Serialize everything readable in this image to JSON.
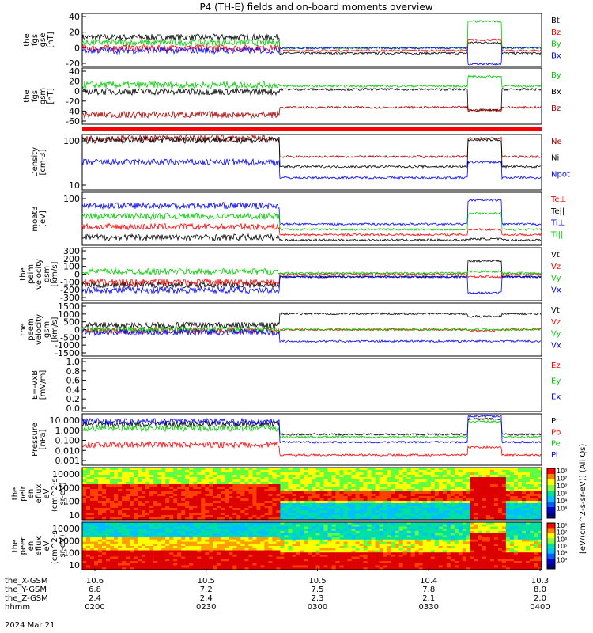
{
  "title": "P4 (TH-E) fields and on-board moments overview",
  "colors": {
    "black": "#000000",
    "red": "#ff0000",
    "green": "#00cc00",
    "blue": "#0000ff",
    "darkred": "#aa0000"
  },
  "chart_data": [
    {
      "type": "line",
      "panel": "fgs_gse",
      "ylabel": [
        "the",
        "fgs",
        "gse",
        "[nT]"
      ],
      "yticks": [
        "40",
        "20",
        "0",
        "-20"
      ],
      "ylim": [
        -30,
        55
      ],
      "series": [
        {
          "name": "Bt",
          "color": "#000000"
        },
        {
          "name": "Bz",
          "color": "#ff0000"
        },
        {
          "name": "By",
          "color": "#00cc00"
        },
        {
          "name": "Bx",
          "color": "#0000ff"
        }
      ]
    },
    {
      "type": "line",
      "panel": "fgs_gsm",
      "ylabel": [
        "the",
        "fgs",
        "gsm",
        "[nT]"
      ],
      "yticks": [
        "40",
        "20",
        "0",
        "-20",
        "-40",
        "-60"
      ],
      "ylim": [
        -75,
        45
      ],
      "series": [
        {
          "name": "By",
          "color": "#00cc00"
        },
        {
          "name": "Bx",
          "color": "#000000"
        },
        {
          "name": "Bz",
          "color": "#aa0000"
        }
      ]
    },
    {
      "type": "line",
      "panel": "density",
      "ylabel": [
        "Density",
        "[cm-3]"
      ],
      "yticks": [
        "100",
        "10"
      ],
      "scale": "log",
      "series": [
        {
          "name": "Ne",
          "color": "#aa0000"
        },
        {
          "name": "Ni",
          "color": "#000000"
        },
        {
          "name": "Npot",
          "color": "#0000ff"
        }
      ]
    },
    {
      "type": "line",
      "panel": "temperature",
      "ylabel": [
        "moat3",
        "[eV]"
      ],
      "yticks": [
        "100"
      ],
      "scale": "log",
      "series": [
        {
          "name": "Te⊥",
          "color": "#ff0000"
        },
        {
          "name": "Te||",
          "color": "#000000"
        },
        {
          "name": "Ti⊥",
          "color": "#0000ff"
        },
        {
          "name": "Ti||",
          "color": "#00cc00"
        }
      ]
    },
    {
      "type": "line",
      "panel": "peim_velocity",
      "ylabel": [
        "the",
        "peim",
        "velocity",
        "gsm",
        "[km/s]"
      ],
      "yticks": [
        "300",
        "200",
        "100",
        "0",
        "-100",
        "-200",
        "-300"
      ],
      "ylim": [
        -300,
        300
      ],
      "series": [
        {
          "name": "Vt",
          "color": "#000000"
        },
        {
          "name": "Vz",
          "color": "#ff0000"
        },
        {
          "name": "Vy",
          "color": "#00cc00"
        },
        {
          "name": "Vx",
          "color": "#0000ff"
        }
      ]
    },
    {
      "type": "line",
      "panel": "peem_velocity",
      "ylabel": [
        "the",
        "peem",
        "velocity",
        "gsm",
        "[km/s]"
      ],
      "yticks": [
        "1500",
        "1000",
        "500",
        "0",
        "-500",
        "-1000",
        "-1500"
      ],
      "ylim": [
        -1500,
        1500
      ],
      "series": [
        {
          "name": "Vt",
          "color": "#000000"
        },
        {
          "name": "Vz",
          "color": "#ff0000"
        },
        {
          "name": "Vy",
          "color": "#00cc00"
        },
        {
          "name": "Vx",
          "color": "#0000ff"
        }
      ]
    },
    {
      "type": "line",
      "panel": "efield",
      "ylabel": [
        "E=-VxB",
        "[mV/m]"
      ],
      "yticks": [
        "1.0",
        "0.8",
        "0.6",
        "0.4",
        "0.2",
        "0.0"
      ],
      "ylim": [
        0,
        1
      ],
      "series": [
        {
          "name": "Ez",
          "color": "#ff0000"
        },
        {
          "name": "Ey",
          "color": "#00cc00"
        },
        {
          "name": "Ex",
          "color": "#0000ff"
        }
      ]
    },
    {
      "type": "line",
      "panel": "pressure",
      "ylabel": [
        "Pressure",
        "[nPa]"
      ],
      "yticks": [
        "10.000",
        "1.000",
        "0.100",
        "0.010",
        "0.001"
      ],
      "scale": "log",
      "series": [
        {
          "name": "Pt",
          "color": "#000000"
        },
        {
          "name": "Pb",
          "color": "#ff0000"
        },
        {
          "name": "Pe",
          "color": "#00cc00"
        },
        {
          "name": "Pi",
          "color": "#0000ff"
        }
      ]
    },
    {
      "type": "heatmap",
      "panel": "peir_en_eflux",
      "ylabel": [
        "the",
        "peir",
        "en",
        "eflux",
        "eV",
        "(cm^2-s-",
        "sr-eV)"
      ],
      "yticks": [
        "10000",
        "1000",
        "100",
        "10"
      ],
      "scale": "log"
    },
    {
      "type": "heatmap",
      "panel": "peer_en_eflux",
      "ylabel": [
        "the",
        "peer",
        "en",
        "eflux",
        "eV",
        "(cm^2-s-",
        "sr-eV)"
      ],
      "yticks": [
        "10000",
        "1000",
        "100",
        "10"
      ],
      "scale": "log"
    }
  ],
  "colorbar": {
    "label": "[eV/(cm^2-s-sr-eV)] (All Qs)",
    "ticks_upper": [
      "10⁸",
      "10⁷",
      "10⁶",
      "10⁵",
      "10⁴",
      "10³"
    ],
    "ticks_lower": [
      "10⁸",
      "10⁷",
      "10⁶",
      "10⁵",
      "10⁴",
      "10³"
    ]
  },
  "xaxis": {
    "rows": [
      {
        "label": "the_X-GSM",
        "values": [
          "10.6",
          "10.5",
          "10.5",
          "10.4",
          "10.3"
        ]
      },
      {
        "label": "the_Y-GSM",
        "values": [
          "6.8",
          "7.2",
          "7.5",
          "7.8",
          "8.0"
        ]
      },
      {
        "label": "the_Z-GSM",
        "values": [
          "2.4",
          "2.4",
          "2.3",
          "2.1",
          "2.0"
        ]
      },
      {
        "label": "hhmm",
        "values": [
          "0200",
          "0230",
          "0300",
          "0330",
          "0400"
        ]
      }
    ],
    "date": "2024 Mar 21"
  }
}
